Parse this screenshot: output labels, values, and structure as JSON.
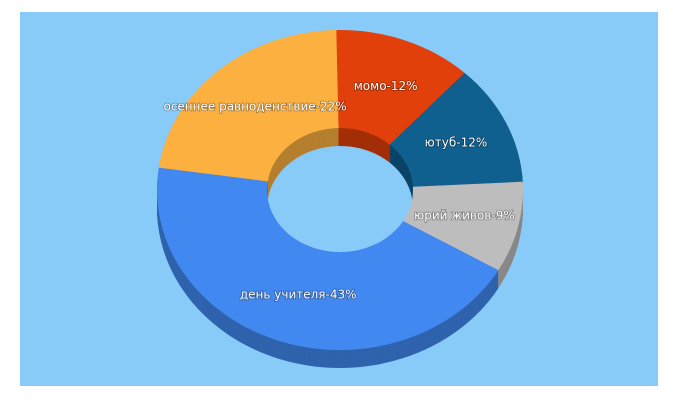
{
  "chart_data": {
    "type": "donut",
    "values": [
      12,
      12,
      9,
      43,
      22
    ],
    "value_labels": [
      "момо-12%",
      "ютуб-12%",
      "юрий живов-9%",
      "день учителя-43%",
      "осеннее равноденствие-22%"
    ],
    "colors": [
      "#e2400a",
      "#0f5f8f",
      "#bdbdbd",
      "#4189f0",
      "#fbb040"
    ]
  }
}
